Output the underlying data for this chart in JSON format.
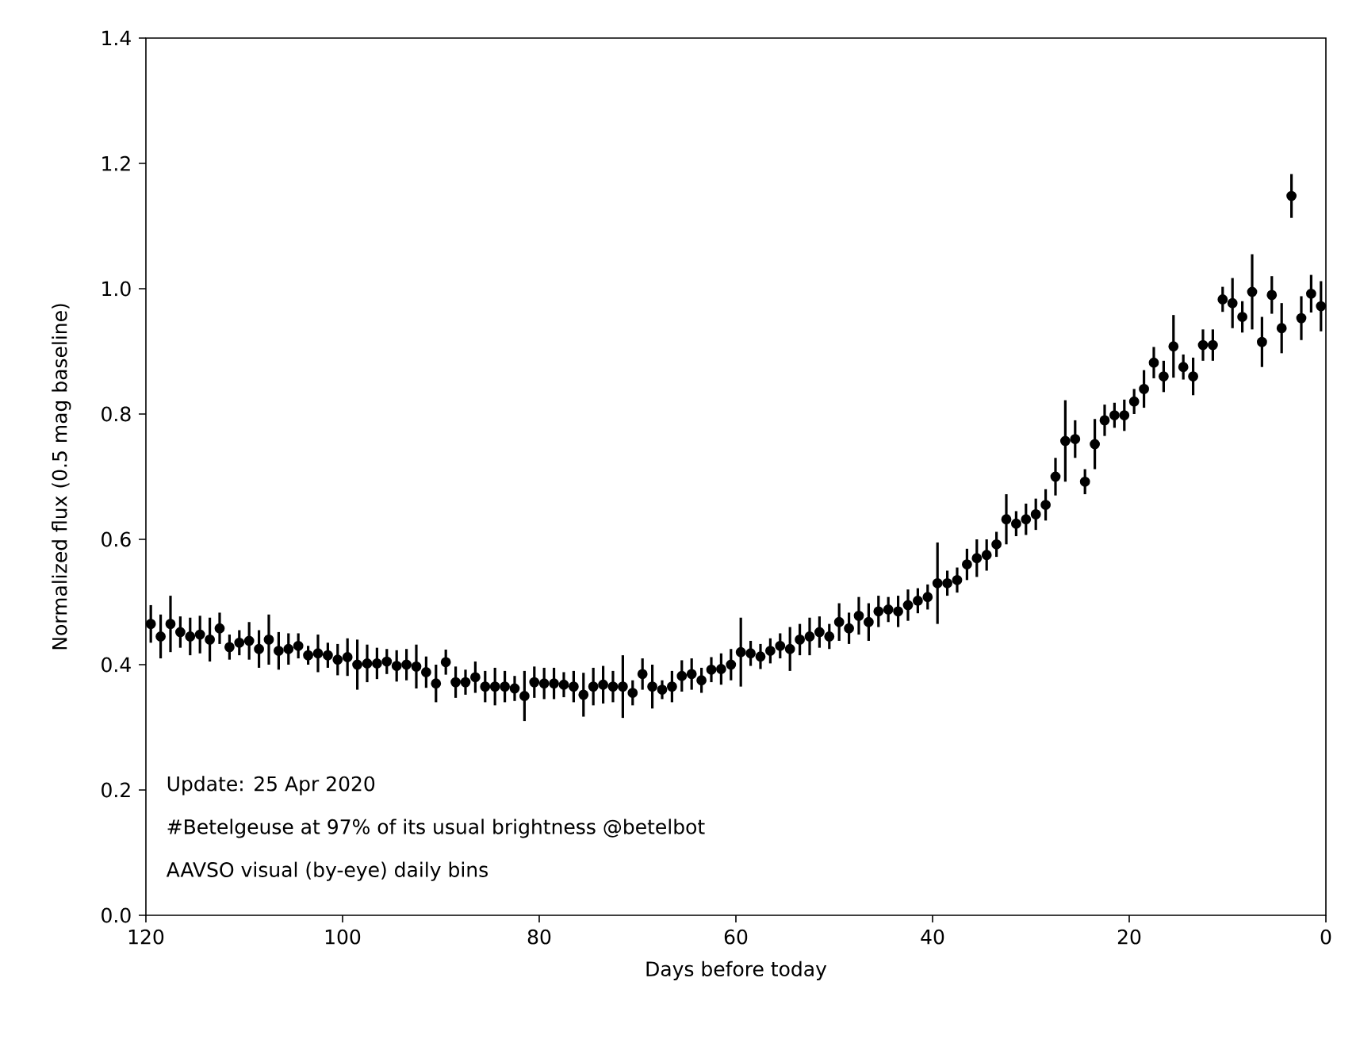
{
  "chart_data": {
    "type": "scatter",
    "xlabel": "Days before today",
    "ylabel": "Normalized flux (0.5 mag baseline)",
    "annotations": [
      "Update: 25 Apr 2020",
      "#Betelgeuse at 97% of its usual brightness @betelbot",
      "AAVSO visual (by-eye) daily bins"
    ],
    "xlim": [
      120,
      0
    ],
    "xticks": [
      120,
      100,
      80,
      60,
      40,
      20,
      0
    ],
    "ylim": [
      0,
      1.4
    ],
    "yticks": [
      {
        "value": 0,
        "label": "0.0"
      },
      0.2,
      0.4,
      0.6,
      0.8,
      {
        "value": 1,
        "label": "1.0"
      },
      1.2,
      1.4
    ],
    "marker": "circle",
    "color": "#000000",
    "x": [
      119.5,
      118.5,
      117.5,
      116.5,
      115.5,
      114.5,
      113.5,
      112.5,
      111.5,
      110.5,
      109.5,
      108.5,
      107.5,
      106.5,
      105.5,
      104.5,
      103.5,
      102.5,
      101.5,
      100.5,
      99.5,
      98.5,
      97.5,
      96.5,
      95.5,
      94.5,
      93.5,
      92.5,
      91.5,
      90.5,
      89.5,
      88.5,
      87.5,
      86.5,
      85.5,
      84.5,
      83.5,
      82.5,
      81.5,
      80.5,
      79.5,
      78.5,
      77.5,
      76.5,
      75.5,
      74.5,
      73.5,
      72.5,
      71.5,
      70.5,
      69.5,
      68.5,
      67.5,
      66.5,
      65.5,
      64.5,
      63.5,
      62.5,
      61.5,
      60.5,
      59.5,
      58.5,
      57.5,
      56.5,
      55.5,
      54.5,
      53.5,
      52.5,
      51.5,
      50.5,
      49.5,
      48.5,
      47.5,
      46.5,
      45.5,
      44.5,
      43.5,
      42.5,
      41.5,
      40.5,
      39.5,
      38.5,
      37.5,
      36.5,
      35.5,
      34.5,
      33.5,
      32.5,
      31.5,
      30.5,
      29.5,
      28.5,
      27.5,
      26.5,
      25.5,
      24.5,
      23.5,
      22.5,
      21.5,
      20.5,
      19.5,
      18.5,
      17.5,
      16.5,
      15.5,
      14.5,
      13.5,
      12.5,
      11.5,
      10.5,
      9.5,
      8.5,
      7.5,
      6.5,
      5.5,
      4.5,
      3.5,
      2.5,
      1.5,
      0.5
    ],
    "values": [
      0.465,
      0.445,
      0.465,
      0.452,
      0.445,
      0.448,
      0.44,
      0.458,
      0.428,
      0.435,
      0.438,
      0.425,
      0.44,
      0.422,
      0.425,
      0.43,
      0.415,
      0.418,
      0.415,
      0.408,
      0.412,
      0.4,
      0.402,
      0.402,
      0.405,
      0.398,
      0.4,
      0.397,
      0.388,
      0.37,
      0.404,
      0.372,
      0.372,
      0.38,
      0.365,
      0.365,
      0.365,
      0.362,
      0.35,
      0.372,
      0.37,
      0.37,
      0.368,
      0.365,
      0.352,
      0.365,
      0.368,
      0.365,
      0.365,
      0.355,
      0.385,
      0.365,
      0.36,
      0.365,
      0.382,
      0.385,
      0.375,
      0.392,
      0.393,
      0.4,
      0.42,
      0.418,
      0.413,
      0.422,
      0.43,
      0.425,
      0.44,
      0.445,
      0.452,
      0.445,
      0.468,
      0.458,
      0.478,
      0.468,
      0.485,
      0.488,
      0.485,
      0.495,
      0.502,
      0.508,
      0.53,
      0.53,
      0.535,
      0.56,
      0.57,
      0.575,
      0.592,
      0.632,
      0.625,
      0.632,
      0.64,
      0.655,
      0.7,
      0.757,
      0.76,
      0.692,
      0.752,
      0.79,
      0.798,
      0.798,
      0.82,
      0.84,
      0.882,
      0.86,
      0.908,
      0.875,
      0.86,
      0.91,
      0.91,
      0.983,
      0.977,
      0.955,
      0.995,
      0.915,
      0.99,
      0.937,
      1.148,
      0.953,
      0.992,
      0.972
    ],
    "errors": [
      0.03,
      0.035,
      0.045,
      0.025,
      0.03,
      0.03,
      0.035,
      0.025,
      0.02,
      0.02,
      0.03,
      0.03,
      0.04,
      0.03,
      0.025,
      0.02,
      0.015,
      0.03,
      0.02,
      0.025,
      0.03,
      0.04,
      0.03,
      0.025,
      0.02,
      0.025,
      0.025,
      0.035,
      0.025,
      0.03,
      0.02,
      0.025,
      0.02,
      0.025,
      0.025,
      0.03,
      0.025,
      0.02,
      0.04,
      0.025,
      0.025,
      0.025,
      0.02,
      0.025,
      0.035,
      0.03,
      0.03,
      0.025,
      0.05,
      0.02,
      0.025,
      0.035,
      0.015,
      0.025,
      0.025,
      0.025,
      0.02,
      0.02,
      0.025,
      0.025,
      0.055,
      0.02,
      0.02,
      0.02,
      0.02,
      0.035,
      0.025,
      0.03,
      0.025,
      0.02,
      0.03,
      0.025,
      0.03,
      0.03,
      0.025,
      0.02,
      0.025,
      0.025,
      0.02,
      0.02,
      0.065,
      0.02,
      0.02,
      0.025,
      0.03,
      0.025,
      0.02,
      0.04,
      0.02,
      0.025,
      0.025,
      0.025,
      0.03,
      0.065,
      0.03,
      0.02,
      0.04,
      0.025,
      0.02,
      0.025,
      0.02,
      0.03,
      0.025,
      0.025,
      0.05,
      0.02,
      0.03,
      0.025,
      0.025,
      0.02,
      0.04,
      0.025,
      0.06,
      0.04,
      0.03,
      0.04,
      0.035,
      0.035,
      0.03,
      0.04
    ]
  }
}
